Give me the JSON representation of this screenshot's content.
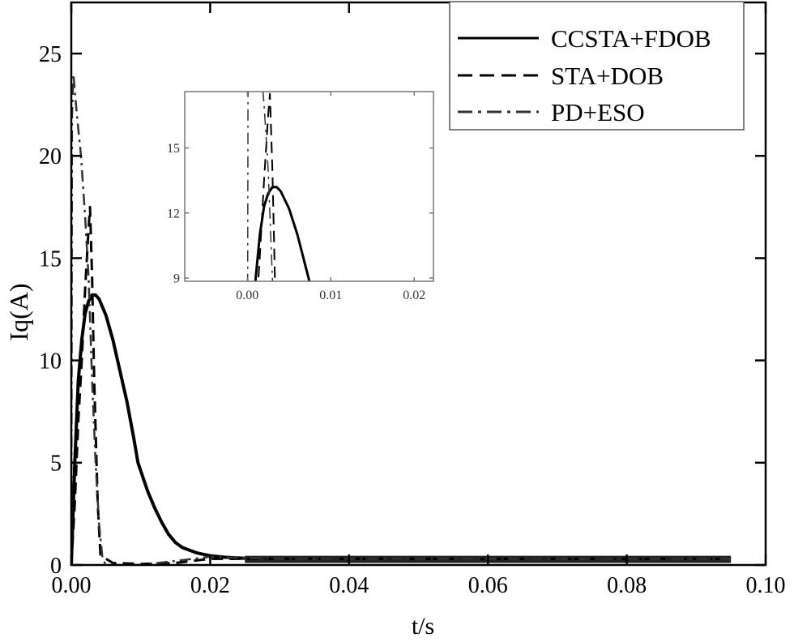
{
  "chart_data": [
    {
      "type": "line",
      "title": "",
      "xlabel": "t/s",
      "ylabel": "Iq(A)",
      "xlim": [
        0,
        0.1
      ],
      "ylim": [
        0,
        27.5
      ],
      "xticks": [
        0,
        0.02,
        0.04,
        0.06,
        0.08,
        0.1
      ],
      "xtick_labels": [
        "0.00",
        "0.02",
        "0.04",
        "0.06",
        "0.08",
        "0.10"
      ],
      "yticks": [
        0,
        5,
        10,
        15,
        20,
        25
      ],
      "ytick_labels": [
        "0",
        "5",
        "10",
        "15",
        "20",
        "25"
      ],
      "grid": false,
      "legend": "top-right",
      "series": [
        {
          "name": "CCSTA+FDOB",
          "style": "solid",
          "color": "#000000",
          "x": [
            0,
            0.0005,
            0.001,
            0.0015,
            0.002,
            0.0025,
            0.003,
            0.0035,
            0.004,
            0.005,
            0.006,
            0.007,
            0.008,
            0.009,
            0.0096,
            0.011,
            0.012,
            0.013,
            0.014,
            0.015,
            0.016,
            0.018,
            0.02,
            0.022,
            0.025,
            0.03,
            0.04,
            0.05,
            0.06,
            0.07,
            0.08,
            0.09,
            0.095
          ],
          "y": [
            0,
            5,
            9,
            11,
            12.3,
            12.9,
            13.2,
            13.2,
            13.0,
            12.2,
            11.0,
            9.5,
            8.0,
            6.2,
            5.0,
            3.6,
            2.8,
            2.1,
            1.5,
            1.1,
            0.85,
            0.6,
            0.45,
            0.38,
            0.33,
            0.3,
            0.3,
            0.3,
            0.3,
            0.3,
            0.3,
            0.3,
            0.3
          ]
        },
        {
          "name": "STA+DOB",
          "style": "dashed",
          "color": "#000000",
          "x": [
            0,
            0.0005,
            0.001,
            0.0015,
            0.002,
            0.0025,
            0.0027,
            0.003,
            0.0033,
            0.0038,
            0.0042,
            0.005,
            0.006,
            0.01,
            0.015,
            0.02,
            0.025,
            0.03,
            0.04,
            0.05,
            0.06,
            0.07,
            0.08,
            0.09,
            0.095
          ],
          "y": [
            0,
            3,
            7,
            10,
            13.5,
            16.5,
            17.5,
            14,
            9,
            3,
            0.5,
            0.3,
            0.1,
            0.05,
            0.1,
            0.3,
            0.3,
            0.3,
            0.3,
            0.3,
            0.3,
            0.3,
            0.3,
            0.3,
            0.3
          ]
        },
        {
          "name": "PD+ESO",
          "style": "dash-dot",
          "color": "#333333",
          "x": [
            0,
            0.0001,
            0.0003,
            0.0008,
            0.0014,
            0.002,
            0.0025,
            0.003,
            0.0035,
            0.004,
            0.0045,
            0.005,
            0.01,
            0.015,
            0.02,
            0.03,
            0.04,
            0.05,
            0.06,
            0.07,
            0.08,
            0.09,
            0.095
          ],
          "y": [
            0,
            22,
            24,
            22,
            20,
            17,
            14,
            9,
            5,
            2,
            0.3,
            0,
            0,
            0.2,
            0.4,
            0.3,
            0.3,
            0.3,
            0.3,
            0.3,
            0.3,
            0.3,
            0.3
          ]
        }
      ]
    },
    {
      "type": "line",
      "title": "",
      "xlim": [
        -0.0075,
        0.0223
      ],
      "ylim": [
        8.85,
        17.6
      ],
      "xticks": [
        0,
        0.01,
        0.02
      ],
      "xtick_labels": [
        "0.00",
        "0.01",
        "0.02"
      ],
      "yticks": [
        9,
        12,
        15
      ],
      "ytick_labels": [
        "9",
        "12",
        "15"
      ],
      "grid": false
    }
  ]
}
